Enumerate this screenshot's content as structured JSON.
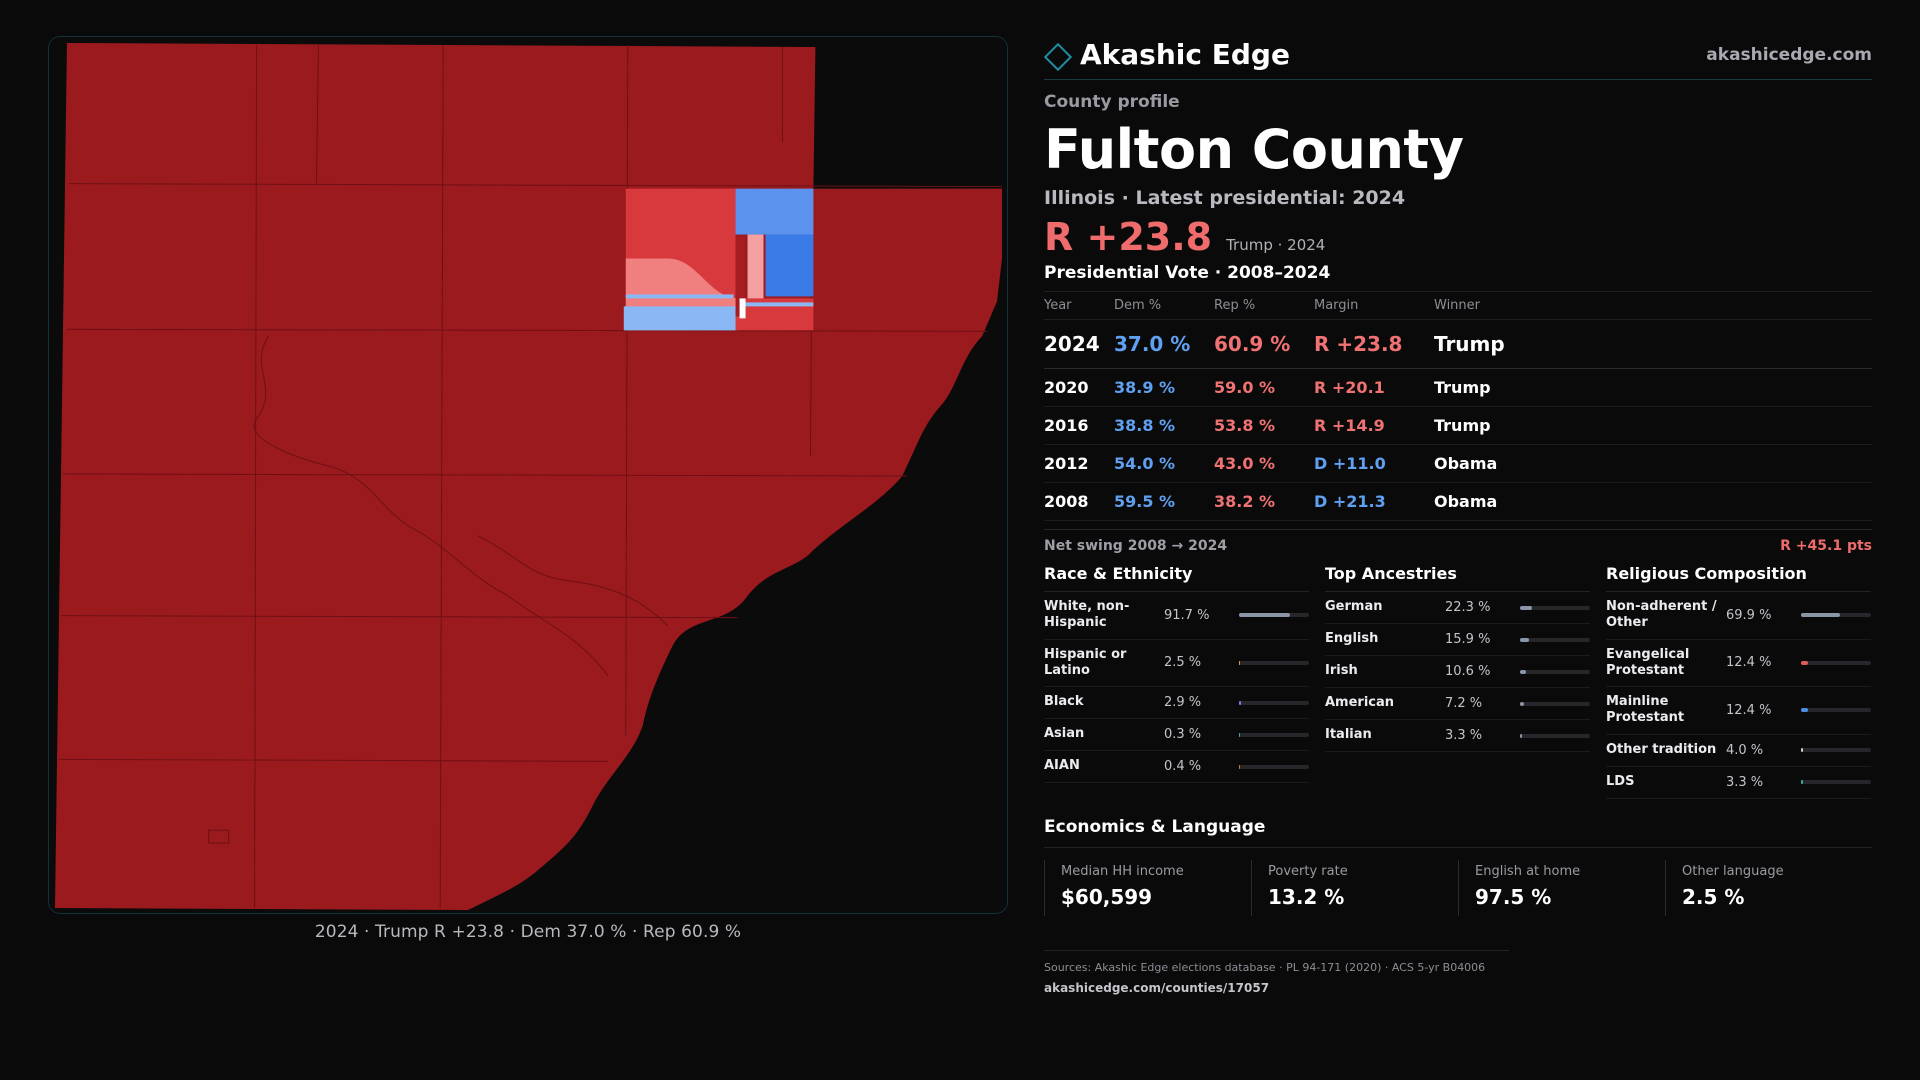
{
  "brand": {
    "name": "Akashic Edge",
    "site": "akashicedge.com"
  },
  "profile": {
    "eyebrow": "County profile",
    "county": "Fulton County",
    "subline": "Illinois · Latest presidential: 2024",
    "margin": "R +23.8",
    "margin_note": "Trump · 2024"
  },
  "map": {
    "caption": "2024 · Trump R +23.8 · Dem 37.0 % · Rep 60.9 %"
  },
  "votes": {
    "title": "Presidential Vote · 2008–2024",
    "headers": [
      "Year",
      "Dem %",
      "Rep %",
      "Margin",
      "Winner"
    ],
    "rows": [
      {
        "year": "2024",
        "dem": "37.0 %",
        "rep": "60.9 %",
        "margin": "R +23.8",
        "winner": "Trump",
        "party": "r"
      },
      {
        "year": "2020",
        "dem": "38.9 %",
        "rep": "59.0 %",
        "margin": "R +20.1",
        "winner": "Trump",
        "party": "r"
      },
      {
        "year": "2016",
        "dem": "38.8 %",
        "rep": "53.8 %",
        "margin": "R +14.9",
        "winner": "Trump",
        "party": "r"
      },
      {
        "year": "2012",
        "dem": "54.0 %",
        "rep": "43.0 %",
        "margin": "D +11.0",
        "winner": "Obama",
        "party": "d"
      },
      {
        "year": "2008",
        "dem": "59.5 %",
        "rep": "38.2 %",
        "margin": "D +21.3",
        "winner": "Obama",
        "party": "d"
      }
    ]
  },
  "swing": {
    "label": "Net swing 2008 → 2024",
    "value": "R +45.1 pts"
  },
  "race": {
    "title": "Race & Ethnicity",
    "rows": [
      {
        "label": "White, non-Hispanic",
        "value": "91.7 %",
        "pct": 91.7,
        "color": "#8a95a8"
      },
      {
        "label": "Hispanic or Latino",
        "value": "2.5 %",
        "pct": 2.5,
        "color": "#d9a03a"
      },
      {
        "label": "Black",
        "value": "2.9 %",
        "pct": 2.9,
        "color": "#8a7ae0"
      },
      {
        "label": "Asian",
        "value": "0.3 %",
        "pct": 0.3,
        "color": "#3ab0a0"
      },
      {
        "label": "AIAN",
        "value": "0.4 %",
        "pct": 0.4,
        "color": "#d07a3a"
      }
    ]
  },
  "ancestry": {
    "title": "Top Ancestries",
    "rows": [
      {
        "label": "German",
        "value": "22.3 %",
        "pct": 22.3,
        "color": "#8a95a8"
      },
      {
        "label": "English",
        "value": "15.9 %",
        "pct": 15.9,
        "color": "#8a95a8"
      },
      {
        "label": "Irish",
        "value": "10.6 %",
        "pct": 10.6,
        "color": "#8a95a8"
      },
      {
        "label": "American",
        "value": "7.2 %",
        "pct": 7.2,
        "color": "#8a95a8"
      },
      {
        "label": "Italian",
        "value": "3.3 %",
        "pct": 3.3,
        "color": "#8a95a8"
      }
    ]
  },
  "religion": {
    "title": "Religious Composition",
    "rows": [
      {
        "label": "Non-adherent / Other",
        "value": "69.9 %",
        "pct": 69.9,
        "color": "#8a95a8"
      },
      {
        "label": "Evangelical Protestant",
        "value": "12.4 %",
        "pct": 12.4,
        "color": "#e05a5a"
      },
      {
        "label": "Mainline Protestant",
        "value": "12.4 %",
        "pct": 12.4,
        "color": "#4a8fe0"
      },
      {
        "label": "Other tradition",
        "value": "4.0 %",
        "pct": 4.0,
        "color": "#c9c9cf"
      },
      {
        "label": "LDS",
        "value": "3.3 %",
        "pct": 3.3,
        "color": "#3ab0a0"
      }
    ]
  },
  "economics": {
    "title": "Economics & Language",
    "cards": [
      {
        "label": "Median HH income",
        "value": "$60,599"
      },
      {
        "label": "Poverty rate",
        "value": "13.2 %"
      },
      {
        "label": "English at home",
        "value": "97.5 %"
      },
      {
        "label": "Other language",
        "value": "2.5 %"
      }
    ]
  },
  "sources": {
    "line": "Sources: Akashic Edge elections database · PL 94-171 (2020) · ACS 5-yr B04006",
    "url": "akashicedge.com/counties/17057"
  },
  "colors": {
    "rep_dark": "#9b1a1e",
    "rep_mid": "#d8393d",
    "rep_light": "#f08080",
    "dem_mid": "#3b7be8",
    "dem_light": "#8ab8f5",
    "accent": "#1f8fa3"
  }
}
